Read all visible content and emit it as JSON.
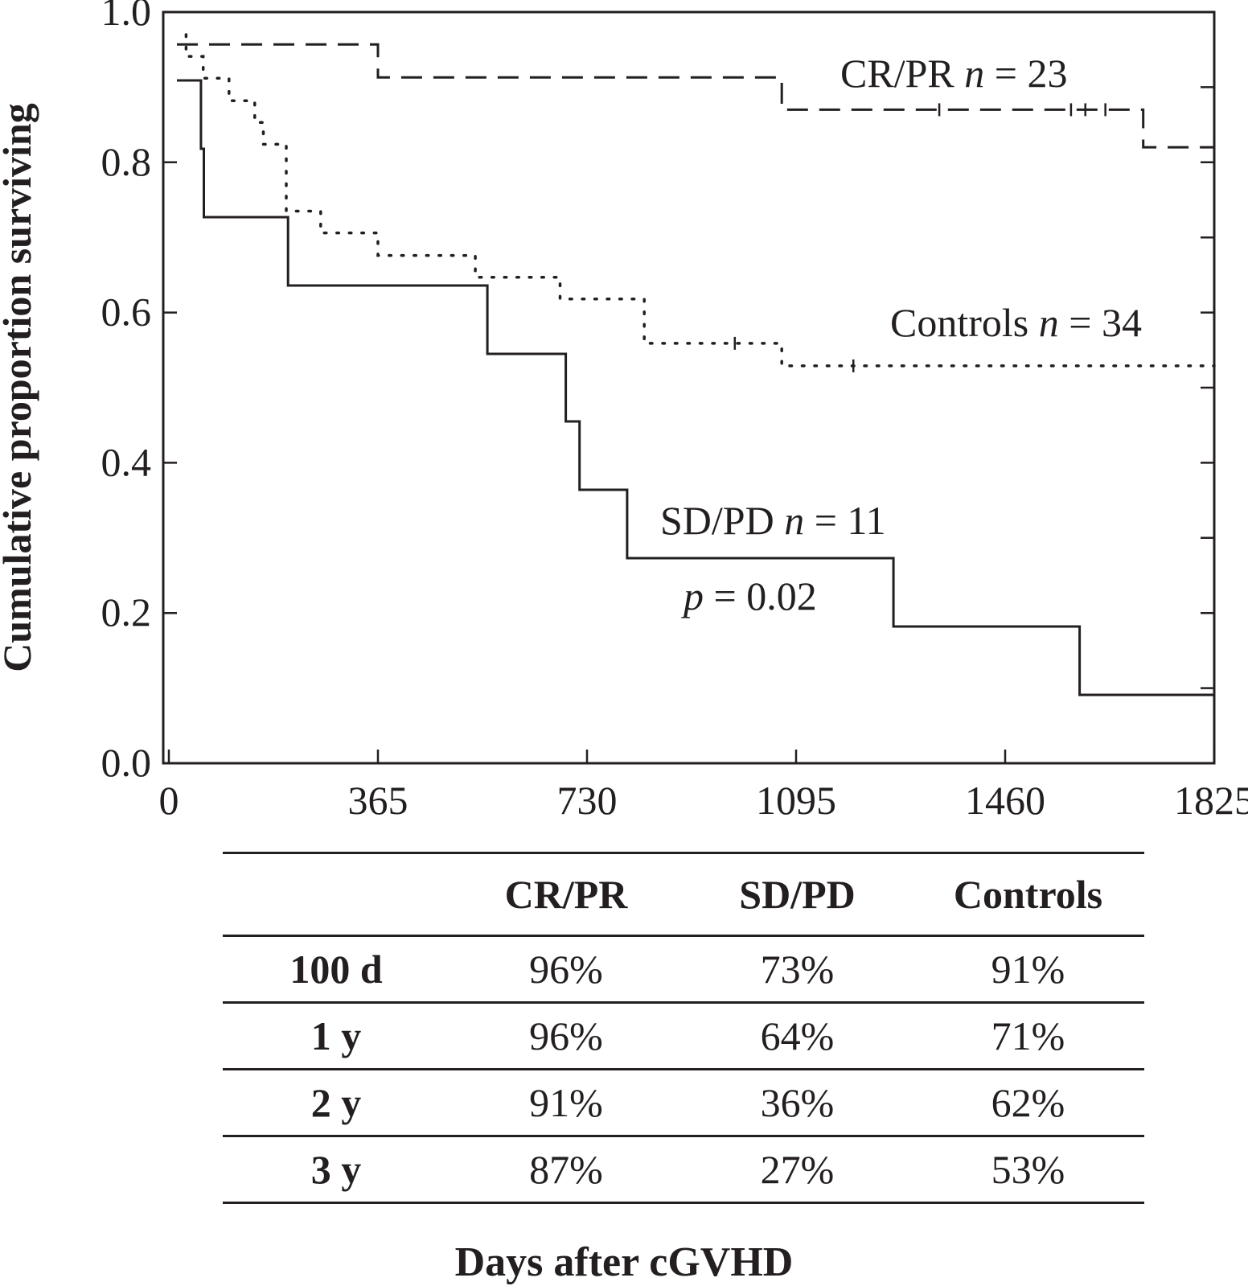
{
  "chart_data": {
    "type": "line",
    "step": true,
    "ylabel": "Cumulative proportion surviving",
    "xlabel": "Days after cGVHD",
    "xlim": [
      0,
      1825
    ],
    "ylim": [
      0,
      1.0
    ],
    "x_ticks": [
      0,
      365,
      730,
      1095,
      1460,
      1825
    ],
    "x_tick_labels": [
      "0",
      "365",
      "730",
      "1095",
      "1460",
      "1825"
    ],
    "y_ticks": [
      0,
      0.2,
      0.4,
      0.6,
      0.8,
      1.0
    ],
    "y_tick_labels": [
      "0.0",
      "0.2",
      "0.4",
      "0.6",
      "0.8",
      "1.0"
    ],
    "series": [
      {
        "name": "CR/PR",
        "style": "dashed",
        "points": [
          [
            14,
            0.957
          ],
          [
            365,
            0.957
          ],
          [
            365,
            0.913
          ],
          [
            1070,
            0.913
          ],
          [
            1070,
            0.87
          ],
          [
            1701,
            0.87
          ],
          [
            1701,
            0.82
          ],
          [
            1825,
            0.82
          ]
        ],
        "censored": [
          [
            1345,
            0.87
          ],
          [
            1575,
            0.87
          ],
          [
            1600,
            0.87
          ],
          [
            1635,
            0.87
          ],
          [
            1825,
            0.82
          ]
        ]
      },
      {
        "name": "SD/PD",
        "style": "solid",
        "points": [
          [
            14,
            0.909
          ],
          [
            56,
            0.909
          ],
          [
            56,
            0.818
          ],
          [
            61,
            0.818
          ],
          [
            61,
            0.727
          ],
          [
            208,
            0.727
          ],
          [
            208,
            0.636
          ],
          [
            556,
            0.636
          ],
          [
            556,
            0.545
          ],
          [
            693,
            0.545
          ],
          [
            693,
            0.455
          ],
          [
            717,
            0.455
          ],
          [
            717,
            0.364
          ],
          [
            800,
            0.364
          ],
          [
            800,
            0.273
          ],
          [
            1265,
            0.273
          ],
          [
            1265,
            0.182
          ],
          [
            1590,
            0.182
          ],
          [
            1590,
            0.091
          ],
          [
            1825,
            0.091
          ]
        ],
        "censored": [
          [
            1825,
            0.091
          ]
        ]
      },
      {
        "name": "Controls",
        "style": "dotted",
        "points": [
          [
            30,
            0.97
          ],
          [
            30,
            0.941
          ],
          [
            60,
            0.941
          ],
          [
            60,
            0.912
          ],
          [
            105,
            0.912
          ],
          [
            105,
            0.882
          ],
          [
            150,
            0.882
          ],
          [
            150,
            0.853
          ],
          [
            165,
            0.853
          ],
          [
            165,
            0.824
          ],
          [
            205,
            0.824
          ],
          [
            205,
            0.735
          ],
          [
            265,
            0.735
          ],
          [
            265,
            0.706
          ],
          [
            365,
            0.706
          ],
          [
            365,
            0.676
          ],
          [
            535,
            0.676
          ],
          [
            535,
            0.647
          ],
          [
            683,
            0.647
          ],
          [
            683,
            0.618
          ],
          [
            830,
            0.618
          ],
          [
            830,
            0.559
          ],
          [
            1070,
            0.559
          ],
          [
            1070,
            0.529
          ],
          [
            1825,
            0.529
          ]
        ],
        "censored": [
          [
            988,
            0.559
          ],
          [
            1195,
            0.529
          ]
        ]
      }
    ],
    "annotations": {
      "crpr": {
        "label": "CR/PR ",
        "n": "n",
        "eq": " = 23"
      },
      "controls": {
        "label": "Controls ",
        "n": "n",
        "eq": " = 34"
      },
      "sdpd": {
        "label": "SD/PD ",
        "n": "n",
        "eq": " = 11"
      },
      "pvalue": {
        "p": "p",
        "eq": " = 0.02"
      }
    }
  },
  "table": {
    "headers": [
      "",
      "CR/PR",
      "SD/PD",
      "Controls"
    ],
    "rows": [
      {
        "label": "100 d",
        "values": [
          "96%",
          "73%",
          "91%"
        ]
      },
      {
        "label": "1 y",
        "values": [
          "96%",
          "64%",
          "71%"
        ]
      },
      {
        "label": "2 y",
        "values": [
          "91%",
          "36%",
          "62%"
        ]
      },
      {
        "label": "3 y",
        "values": [
          "87%",
          "27%",
          "53%"
        ]
      }
    ]
  }
}
